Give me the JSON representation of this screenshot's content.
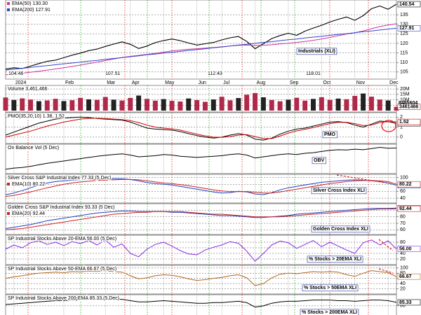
{
  "chart_data": [
    {
      "type": "line",
      "categories": [
        null,
        "2024",
        null,
        null,
        null,
        null,
        null,
        "Feb",
        null,
        null,
        null,
        null,
        "Mar",
        null,
        null,
        "Apr",
        null,
        null,
        null,
        "May",
        null,
        null,
        null,
        "Jun",
        null,
        null,
        "Jul",
        null,
        null,
        null,
        "Aug",
        null,
        null,
        null,
        "Sep",
        null,
        null,
        null,
        "Oct",
        null,
        null,
        null,
        "Nov",
        null,
        null,
        null,
        "Dec",
        null
      ],
      "series": [
        {
          "color": "#000000",
          "end_label": true,
          "values": [
            106.5,
            107.2,
            106.8,
            108.1,
            109.4,
            110.6,
            111.2,
            112.5,
            113.8,
            114.9,
            116.2,
            117.0,
            118.4,
            119.6,
            120.8,
            119.5,
            117.3,
            118.6,
            120.4,
            121.5,
            122.3,
            121.4,
            120.2,
            119.1,
            119.8,
            120.5,
            121.8,
            122.9,
            123.6,
            121.0,
            117.2,
            119.8,
            122.5,
            124.1,
            125.3,
            124.2,
            126.4,
            128.0,
            129.5,
            131.2,
            132.6,
            133.8,
            132.1,
            134.5,
            138.2,
            139.6,
            137.9,
            140.54
          ]
        },
        {
          "name": "EMA(50) 130.30",
          "color": "#cc3399",
          "values": [
            103.5,
            104,
            104.4,
            104.9,
            105.4,
            106,
            106.6,
            107.2,
            107.9,
            108.6,
            109.4,
            110.2,
            111,
            111.8,
            112.6,
            113.2,
            113.7,
            114.2,
            114.8,
            115.4,
            116,
            116.5,
            116.9,
            117.2,
            117.5,
            117.8,
            118.2,
            118.6,
            119,
            119.1,
            118.9,
            119,
            119.3,
            119.7,
            120.1,
            120.5,
            121,
            121.6,
            122.3,
            123.1,
            124,
            124.9,
            125.6,
            126.5,
            127.7,
            128.8,
            129.6,
            130.3
          ]
        },
        {
          "name": "EMA(200) 127.91",
          "color": "#3344cc",
          "end_label": true,
          "values": [
            106.0,
            106.5,
            106.9,
            107.4,
            107.9,
            108.3,
            108.8,
            109.3,
            109.7,
            110.2,
            110.7,
            111.1,
            111.6,
            112.1,
            112.5,
            113.0,
            113.5,
            114.0,
            114.4,
            114.9,
            115.3,
            115.8,
            116.3,
            116.7,
            117.2,
            117.7,
            118.1,
            118.6,
            119.1,
            119.5,
            120.0,
            120.5,
            120.9,
            121.4,
            121.9,
            122.3,
            122.8,
            123.3,
            123.7,
            124.2,
            124.7,
            125.1,
            125.6,
            126.1,
            126.5,
            127.0,
            127.5,
            127.91
          ]
        }
      ],
      "ylim": [
        102,
        142
      ],
      "yticks": [
        105,
        110,
        115,
        120,
        125,
        130,
        135
      ],
      "annotations": [
        "Industrials (XLI)"
      ],
      "low_labels": [
        "104.46",
        "107.51",
        "112.43",
        "118.01"
      ]
    },
    {
      "type": "bar",
      "title": "Volume 3,461,466",
      "series": [
        {
          "color": "#b0284a",
          "end_label": true,
          "values": [
            12100000,
            9800000,
            11300000,
            10200000,
            8700000,
            9400000,
            10900000,
            8800000,
            9600000,
            11800000,
            10400000,
            9900000,
            12600000,
            10100000,
            9300000,
            11700000,
            13900000,
            10800000,
            9200000,
            10600000,
            9000000,
            8400000,
            11200000,
            9700000,
            8100000,
            10300000,
            12800000,
            9500000,
            11600000,
            14700000,
            16200000,
            12300000,
            9800000,
            8600000,
            10100000,
            11900000,
            9200000,
            10800000,
            12400000,
            9900000,
            11100000,
            10500000,
            13600000,
            15800000,
            12900000,
            10200000,
            9400000,
            3461466
          ]
        }
      ],
      "ylim": [
        0,
        22000000
      ],
      "yticks": [
        {
          "value": 5000000,
          "label": "5M"
        },
        {
          "value": 10000000,
          "label": "10M"
        },
        {
          "value": 15000000,
          "label": "15M"
        },
        {
          "value": 20000000,
          "label": "20M"
        }
      ],
      "annotations": [
        "8485604"
      ]
    },
    {
      "type": "line",
      "title": "PMO(35,20,10) 1.38, 1.52",
      "series": [
        {
          "color": "#000000",
          "end_label": true,
          "values": [
            0.2,
            0.5,
            0.8,
            1.1,
            1.4,
            1.6,
            1.8,
            1.9,
            1.95,
            2.0,
            1.95,
            1.85,
            1.8,
            1.75,
            1.7,
            1.5,
            1.2,
            0.9,
            0.8,
            0.75,
            0.7,
            0.55,
            0.35,
            0.15,
            0.0,
            -0.1,
            0.0,
            0.2,
            0.35,
            0.2,
            -0.2,
            -0.3,
            -0.1,
            0.3,
            0.6,
            0.8,
            0.9,
            1.1,
            1.3,
            1.5,
            1.55,
            1.45,
            1.2,
            1.0,
            1.3,
            1.6,
            1.55,
            1.38
          ]
        },
        {
          "color": "#cc0000",
          "end_label": true,
          "values": [
            0.0,
            0.2,
            0.4,
            0.6,
            0.85,
            1.1,
            1.3,
            1.5,
            1.65,
            1.8,
            1.88,
            1.88,
            1.85,
            1.8,
            1.75,
            1.65,
            1.45,
            1.2,
            1.0,
            0.9,
            0.82,
            0.7,
            0.5,
            0.3,
            0.12,
            0.0,
            -0.02,
            0.05,
            0.2,
            0.25,
            0.05,
            -0.15,
            -0.15,
            0.1,
            0.4,
            0.62,
            0.78,
            0.95,
            1.15,
            1.35,
            1.48,
            1.48,
            1.35,
            1.15,
            1.2,
            1.45,
            1.55,
            1.52
          ]
        }
      ],
      "ylim": [
        -0.5,
        2.3
      ],
      "yticks": [
        0,
        1,
        2
      ],
      "annotations": [
        "PMO"
      ]
    },
    {
      "type": "line",
      "title": "On Balance Vol (5 Dec)",
      "series": [
        {
          "color": "#000000",
          "values": [
            20,
            24,
            26,
            30,
            35,
            40,
            44,
            48,
            52,
            56,
            60,
            64,
            67,
            70,
            72,
            68,
            62,
            64,
            66,
            70,
            68,
            64,
            62,
            60,
            62,
            64,
            66,
            70,
            72,
            68,
            58,
            62,
            66,
            70,
            72,
            70,
            74,
            76,
            80,
            84,
            86,
            85,
            88,
            86,
            90,
            94,
            91,
            92
          ]
        }
      ],
      "ylim": [
        10,
        100
      ],
      "annotations": [
        "OBV"
      ]
    },
    {
      "type": "line",
      "title": "Silver Cross S&P Industrial Index 77.33 (5 Dec)",
      "series": [
        {
          "color": "#1f3fbf",
          "end_label": true,
          "values": [
            50,
            55,
            62,
            70,
            78,
            84,
            88,
            90,
            92,
            93,
            94,
            94,
            95,
            96,
            96,
            94,
            90,
            85,
            82,
            80,
            78,
            74,
            70,
            66,
            62,
            58,
            55,
            56,
            60,
            58,
            52,
            50,
            56,
            64,
            70,
            74,
            78,
            82,
            86,
            88,
            90,
            92,
            93,
            92,
            90,
            88,
            84,
            77.33
          ]
        },
        {
          "name": "EMA(10) 80.22",
          "color": "#cc2222",
          "end_label": true,
          "values": [
            45,
            48,
            53,
            58,
            64,
            70,
            75,
            80,
            84,
            87,
            89,
            91,
            92,
            93,
            94,
            94,
            93,
            90,
            87,
            84,
            82,
            79,
            76,
            72,
            68,
            64,
            61,
            59,
            59,
            59,
            57,
            55,
            55,
            58,
            62,
            66,
            70,
            74,
            78,
            82,
            85,
            88,
            90,
            91,
            91,
            90,
            88,
            80.22
          ]
        }
      ],
      "ylim": [
        30,
        105
      ],
      "yticks": [
        40,
        60,
        80,
        100
      ],
      "annotations": [
        "Silver Cross Index XLI"
      ]
    },
    {
      "type": "line",
      "title": "Golden Cross S&P Industrial Index 93.33 (5 Dec)",
      "series": [
        {
          "color": "#1f3fbf",
          "end_label": true,
          "values": [
            62,
            64,
            66,
            68,
            71,
            74,
            76,
            78,
            80,
            82,
            84,
            86,
            87,
            88,
            89,
            89,
            88,
            88,
            88,
            88,
            87,
            87,
            86,
            85,
            84,
            83,
            82,
            82,
            81,
            80,
            79,
            79,
            80,
            81,
            82,
            84,
            85,
            86,
            87,
            88,
            89,
            90,
            91,
            92,
            93,
            93,
            93,
            93.33
          ]
        },
        {
          "name": "EMA(20) 92.44",
          "color": "#cc2222",
          "end_label": true,
          "values": [
            60,
            61,
            62,
            64,
            66,
            68,
            70,
            72,
            74,
            76,
            78,
            80,
            82,
            84,
            85,
            86,
            87,
            87,
            88,
            88,
            88,
            88,
            87,
            86,
            85,
            84,
            84,
            83,
            82,
            81,
            80,
            80,
            80,
            80,
            81,
            82,
            83,
            84,
            85,
            86,
            87,
            88,
            89,
            90,
            91,
            92,
            92,
            92.44
          ]
        }
      ],
      "ylim": [
        55,
        98
      ],
      "yticks": [
        60,
        70,
        80,
        90
      ],
      "annotations": [
        "Golden Cross Index XLI"
      ]
    },
    {
      "type": "line",
      "title": "SP Industrial Stocks Above 20-EMA 56.00 (5 Dec)",
      "series": [
        {
          "color": "#8a2be2",
          "values": [
            55,
            70,
            60,
            78,
            85,
            72,
            80,
            68,
            82,
            75,
            86,
            70,
            88,
            62,
            74,
            40,
            28,
            55,
            72,
            80,
            66,
            50,
            38,
            35,
            52,
            62,
            70,
            82,
            76,
            48,
            12,
            40,
            70,
            84,
            78,
            58,
            72,
            86,
            64,
            80,
            66,
            52,
            40,
            78,
            88,
            70,
            85,
            56
          ],
          "value_labels": [
            null,
            null,
            null,
            null,
            null,
            null,
            null,
            null,
            null,
            null,
            null,
            null,
            null,
            null,
            null,
            null,
            null,
            null,
            null,
            null,
            null,
            null,
            null,
            null,
            null,
            null,
            null,
            null,
            null,
            null,
            null,
            null,
            null,
            null,
            null,
            null,
            null,
            null,
            null,
            null,
            null,
            null,
            null,
            null,
            null,
            null,
            null,
            "56.00"
          ]
        }
      ],
      "ylim": [
        5,
        100
      ],
      "yticks": [
        20,
        40,
        60,
        80
      ],
      "annotations": [
        "% Stocks > 20EMA XLI"
      ]
    },
    {
      "type": "line",
      "title": "SP Industrial Stocks Above 50-EMA 66.67 (5 Dec)",
      "series": [
        {
          "color": "#b5651d",
          "end_label": true,
          "values": [
            60,
            66,
            70,
            76,
            80,
            82,
            84,
            82,
            86,
            85,
            88,
            87,
            90,
            86,
            84,
            70,
            58,
            62,
            70,
            74,
            72,
            66,
            58,
            52,
            55,
            60,
            64,
            70,
            74,
            62,
            32,
            40,
            62,
            76,
            80,
            78,
            82,
            86,
            84,
            86,
            84,
            74,
            68,
            80,
            90,
            86,
            82,
            66.67
          ]
        }
      ],
      "ylim": [
        5,
        105
      ],
      "yticks": [
        20,
        40,
        60,
        80,
        100
      ],
      "annotations": [
        "% Stocks > 50EMA XLI"
      ]
    },
    {
      "type": "line",
      "title": "SP Industrial Stocks Above 200-EMA 85.33 (5 Dec)",
      "series": [
        {
          "color": "#000000",
          "end_label": true,
          "values": [
            82,
            83,
            84,
            85,
            86,
            87,
            88,
            88,
            89,
            89,
            90,
            90,
            90,
            90,
            90,
            88,
            86,
            86,
            87,
            88,
            87,
            86,
            85,
            84,
            84,
            85,
            85,
            86,
            87,
            85,
            78,
            80,
            84,
            86,
            87,
            87,
            88,
            89,
            89,
            89,
            88,
            88,
            87,
            88,
            89,
            89,
            88,
            85.33
          ]
        }
      ],
      "ylim": [
        55,
        95
      ],
      "yticks": [
        60,
        80
      ],
      "annotations": [
        "% Stocks > 200EMA XLI"
      ]
    }
  ]
}
